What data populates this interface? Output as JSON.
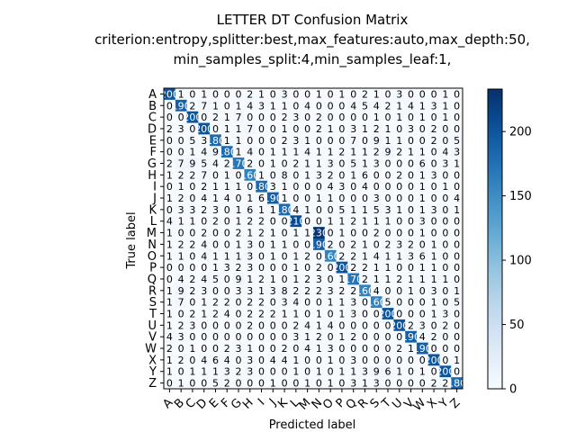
{
  "chart_data": {
    "type": "heatmap",
    "title_lines": [
      "LETTER DT Confusion Matrix",
      "criterion:entropy,splitter:best,max_features:auto,max_depth:50,",
      "min_samples_split:4,min_samples_leaf:1,"
    ],
    "xlabel": "Predicted label",
    "ylabel": "True label",
    "labels": [
      "A",
      "B",
      "C",
      "D",
      "E",
      "F",
      "G",
      "H",
      "I",
      "J",
      "K",
      "L",
      "M",
      "N",
      "O",
      "P",
      "Q",
      "R",
      "S",
      "T",
      "U",
      "V",
      "W",
      "X",
      "Y",
      "Z"
    ],
    "colorbar": {
      "min": 0,
      "max": 233,
      "ticks": [
        0,
        50,
        100,
        150,
        200
      ],
      "colormap": "Blues"
    },
    "matrix": [
      [
        200,
        1,
        0,
        1,
        0,
        0,
        0,
        2,
        1,
        0,
        3,
        0,
        0,
        1,
        0,
        1,
        0,
        2,
        1,
        0,
        3,
        0,
        0,
        0,
        1,
        0
      ],
      [
        0,
        190,
        2,
        7,
        1,
        0,
        1,
        4,
        3,
        1,
        1,
        0,
        4,
        0,
        0,
        0,
        4,
        5,
        4,
        2,
        1,
        4,
        1,
        3,
        1,
        0
      ],
      [
        0,
        0,
        200,
        0,
        2,
        1,
        7,
        0,
        0,
        0,
        2,
        3,
        0,
        2,
        0,
        0,
        0,
        0,
        1,
        0,
        1,
        0,
        1,
        0,
        1,
        0
      ],
      [
        2,
        3,
        0,
        200,
        0,
        1,
        1,
        7,
        0,
        0,
        1,
        0,
        0,
        2,
        1,
        0,
        3,
        1,
        2,
        1,
        0,
        3,
        0,
        2,
        0,
        0
      ],
      [
        0,
        0,
        5,
        3,
        180,
        1,
        1,
        0,
        0,
        0,
        2,
        3,
        1,
        0,
        0,
        0,
        7,
        0,
        9,
        1,
        1,
        0,
        0,
        2,
        0,
        5
      ],
      [
        0,
        0,
        1,
        4,
        9,
        180,
        1,
        4,
        0,
        1,
        1,
        1,
        4,
        1,
        1,
        2,
        1,
        1,
        2,
        9,
        2,
        1,
        1,
        0,
        4,
        3
      ],
      [
        2,
        7,
        9,
        5,
        4,
        2,
        170,
        2,
        0,
        1,
        0,
        2,
        1,
        1,
        3,
        0,
        5,
        1,
        3,
        0,
        0,
        0,
        6,
        0,
        3,
        1
      ],
      [
        1,
        2,
        2,
        7,
        0,
        1,
        0,
        160,
        1,
        0,
        8,
        0,
        1,
        3,
        2,
        0,
        1,
        6,
        0,
        0,
        2,
        0,
        1,
        3,
        0,
        0
      ],
      [
        0,
        1,
        0,
        2,
        1,
        1,
        1,
        0,
        180,
        3,
        1,
        0,
        0,
        0,
        4,
        3,
        0,
        4,
        0,
        0,
        0,
        0,
        1,
        0,
        1,
        0
      ],
      [
        1,
        2,
        0,
        4,
        1,
        4,
        0,
        1,
        6,
        190,
        1,
        0,
        0,
        1,
        1,
        0,
        0,
        0,
        3,
        0,
        0,
        0,
        1,
        0,
        0,
        4
      ],
      [
        0,
        3,
        3,
        2,
        3,
        0,
        1,
        6,
        1,
        1,
        180,
        4,
        1,
        0,
        0,
        5,
        1,
        1,
        5,
        3,
        1,
        0,
        1,
        3,
        0,
        1
      ],
      [
        4,
        1,
        1,
        0,
        2,
        0,
        1,
        2,
        2,
        0,
        0,
        210,
        0,
        0,
        1,
        1,
        2,
        1,
        1,
        1,
        0,
        0,
        3,
        0,
        0,
        0
      ],
      [
        1,
        0,
        0,
        2,
        0,
        0,
        2,
        1,
        2,
        1,
        0,
        1,
        1,
        230,
        0,
        1,
        0,
        0,
        2,
        0,
        0,
        0,
        1,
        0,
        0,
        0
      ],
      [
        1,
        2,
        2,
        4,
        0,
        0,
        1,
        3,
        0,
        1,
        1,
        0,
        0,
        190,
        2,
        0,
        2,
        1,
        0,
        2,
        3,
        2,
        0,
        1,
        0,
        0
      ],
      [
        1,
        1,
        0,
        4,
        1,
        1,
        1,
        3,
        0,
        1,
        0,
        1,
        2,
        0,
        160,
        2,
        2,
        1,
        4,
        1,
        1,
        3,
        6,
        1,
        0,
        0
      ],
      [
        0,
        0,
        0,
        0,
        1,
        3,
        2,
        3,
        0,
        0,
        0,
        1,
        0,
        2,
        0,
        200,
        2,
        2,
        1,
        1,
        0,
        0,
        1,
        1,
        0,
        0
      ],
      [
        0,
        4,
        2,
        4,
        5,
        0,
        9,
        1,
        2,
        1,
        0,
        1,
        2,
        3,
        0,
        1,
        170,
        2,
        1,
        1,
        2,
        1,
        1,
        1,
        1,
        0
      ],
      [
        1,
        9,
        2,
        3,
        0,
        0,
        3,
        3,
        1,
        3,
        8,
        2,
        2,
        2,
        3,
        2,
        2,
        160,
        4,
        0,
        0,
        1,
        0,
        3,
        0,
        1
      ],
      [
        1,
        7,
        0,
        1,
        2,
        2,
        0,
        2,
        2,
        0,
        3,
        4,
        0,
        0,
        1,
        1,
        3,
        0,
        160,
        5,
        0,
        0,
        0,
        1,
        0,
        5
      ],
      [
        1,
        0,
        2,
        1,
        2,
        4,
        0,
        2,
        2,
        2,
        1,
        1,
        0,
        1,
        0,
        1,
        3,
        0,
        0,
        200,
        0,
        0,
        0,
        1,
        3,
        0
      ],
      [
        1,
        2,
        3,
        0,
        0,
        0,
        0,
        2,
        0,
        0,
        0,
        2,
        4,
        1,
        4,
        0,
        0,
        0,
        0,
        0,
        200,
        2,
        3,
        0,
        2,
        0
      ],
      [
        4,
        3,
        0,
        0,
        0,
        0,
        0,
        0,
        0,
        0,
        0,
        3,
        1,
        2,
        0,
        1,
        2,
        0,
        0,
        0,
        0,
        190,
        4,
        2,
        0,
        0
      ],
      [
        2,
        0,
        1,
        0,
        0,
        2,
        3,
        1,
        0,
        0,
        2,
        0,
        4,
        1,
        3,
        0,
        0,
        0,
        0,
        0,
        2,
        1,
        190,
        0,
        0,
        0
      ],
      [
        1,
        2,
        0,
        4,
        6,
        4,
        0,
        3,
        0,
        4,
        4,
        1,
        0,
        0,
        1,
        0,
        3,
        0,
        0,
        0,
        0,
        0,
        0,
        200,
        0,
        1
      ],
      [
        1,
        0,
        1,
        1,
        1,
        3,
        2,
        3,
        0,
        0,
        0,
        1,
        0,
        1,
        0,
        1,
        1,
        3,
        9,
        6,
        1,
        0,
        1,
        0,
        200,
        0
      ],
      [
        0,
        1,
        0,
        0,
        5,
        2,
        0,
        0,
        0,
        1,
        0,
        0,
        1,
        0,
        1,
        0,
        3,
        1,
        3,
        0,
        0,
        0,
        0,
        2,
        2,
        180
      ]
    ]
  }
}
